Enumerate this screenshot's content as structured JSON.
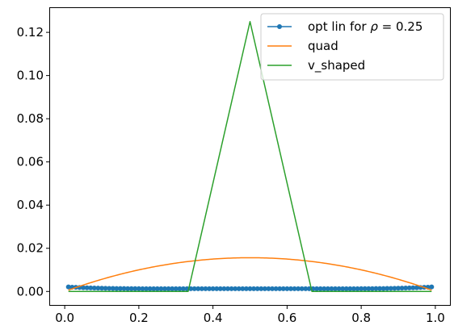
{
  "chart_data": {
    "type": "line",
    "title": "",
    "xlabel": "",
    "ylabel": "",
    "xlim": [
      -0.0395,
      1.0395
    ],
    "ylim": [
      -0.00625,
      0.13125
    ],
    "xticks": [
      {
        "value": 0.0,
        "label": "0.0"
      },
      {
        "value": 0.2,
        "label": "0.2"
      },
      {
        "value": 0.4,
        "label": "0.4"
      },
      {
        "value": 0.6,
        "label": "0.6"
      },
      {
        "value": 0.8,
        "label": "0.8"
      },
      {
        "value": 1.0,
        "label": "1.0"
      }
    ],
    "yticks": [
      {
        "value": 0.0,
        "label": "0.00"
      },
      {
        "value": 0.02,
        "label": "0.02"
      },
      {
        "value": 0.04,
        "label": "0.04"
      },
      {
        "value": 0.06,
        "label": "0.06"
      },
      {
        "value": 0.08,
        "label": "0.08"
      },
      {
        "value": 0.1,
        "label": "0.10"
      },
      {
        "value": 0.12,
        "label": "0.12"
      }
    ],
    "grid": false,
    "legend_position": "top-right",
    "series": [
      {
        "name": "opt lin for ρ = 0.25",
        "legend_html": "opt lin for <tspan font-style='italic'>ρ</tspan> = 0.25",
        "color": "#1f77b4",
        "style": "line-with-dot-markers",
        "x_start": 0.01,
        "x_end": 0.99,
        "num_points": 99,
        "value_min": 0.00125,
        "value_max": 0.0022
      },
      {
        "name": "quad",
        "color": "#ff7f0e",
        "style": "line",
        "formula": "y = 0.0625 * x * (1 - x)",
        "x_start": 0.01,
        "x_end": 0.99,
        "peak": {
          "x": 0.5,
          "y": 0.0156
        }
      },
      {
        "name": "v_shaped",
        "color": "#2ca02c",
        "style": "line",
        "x": [
          0.01,
          0.333,
          0.5,
          0.667,
          0.99
        ],
        "y": [
          0.0,
          0.0,
          0.125,
          0.0,
          0.0
        ]
      }
    ]
  }
}
